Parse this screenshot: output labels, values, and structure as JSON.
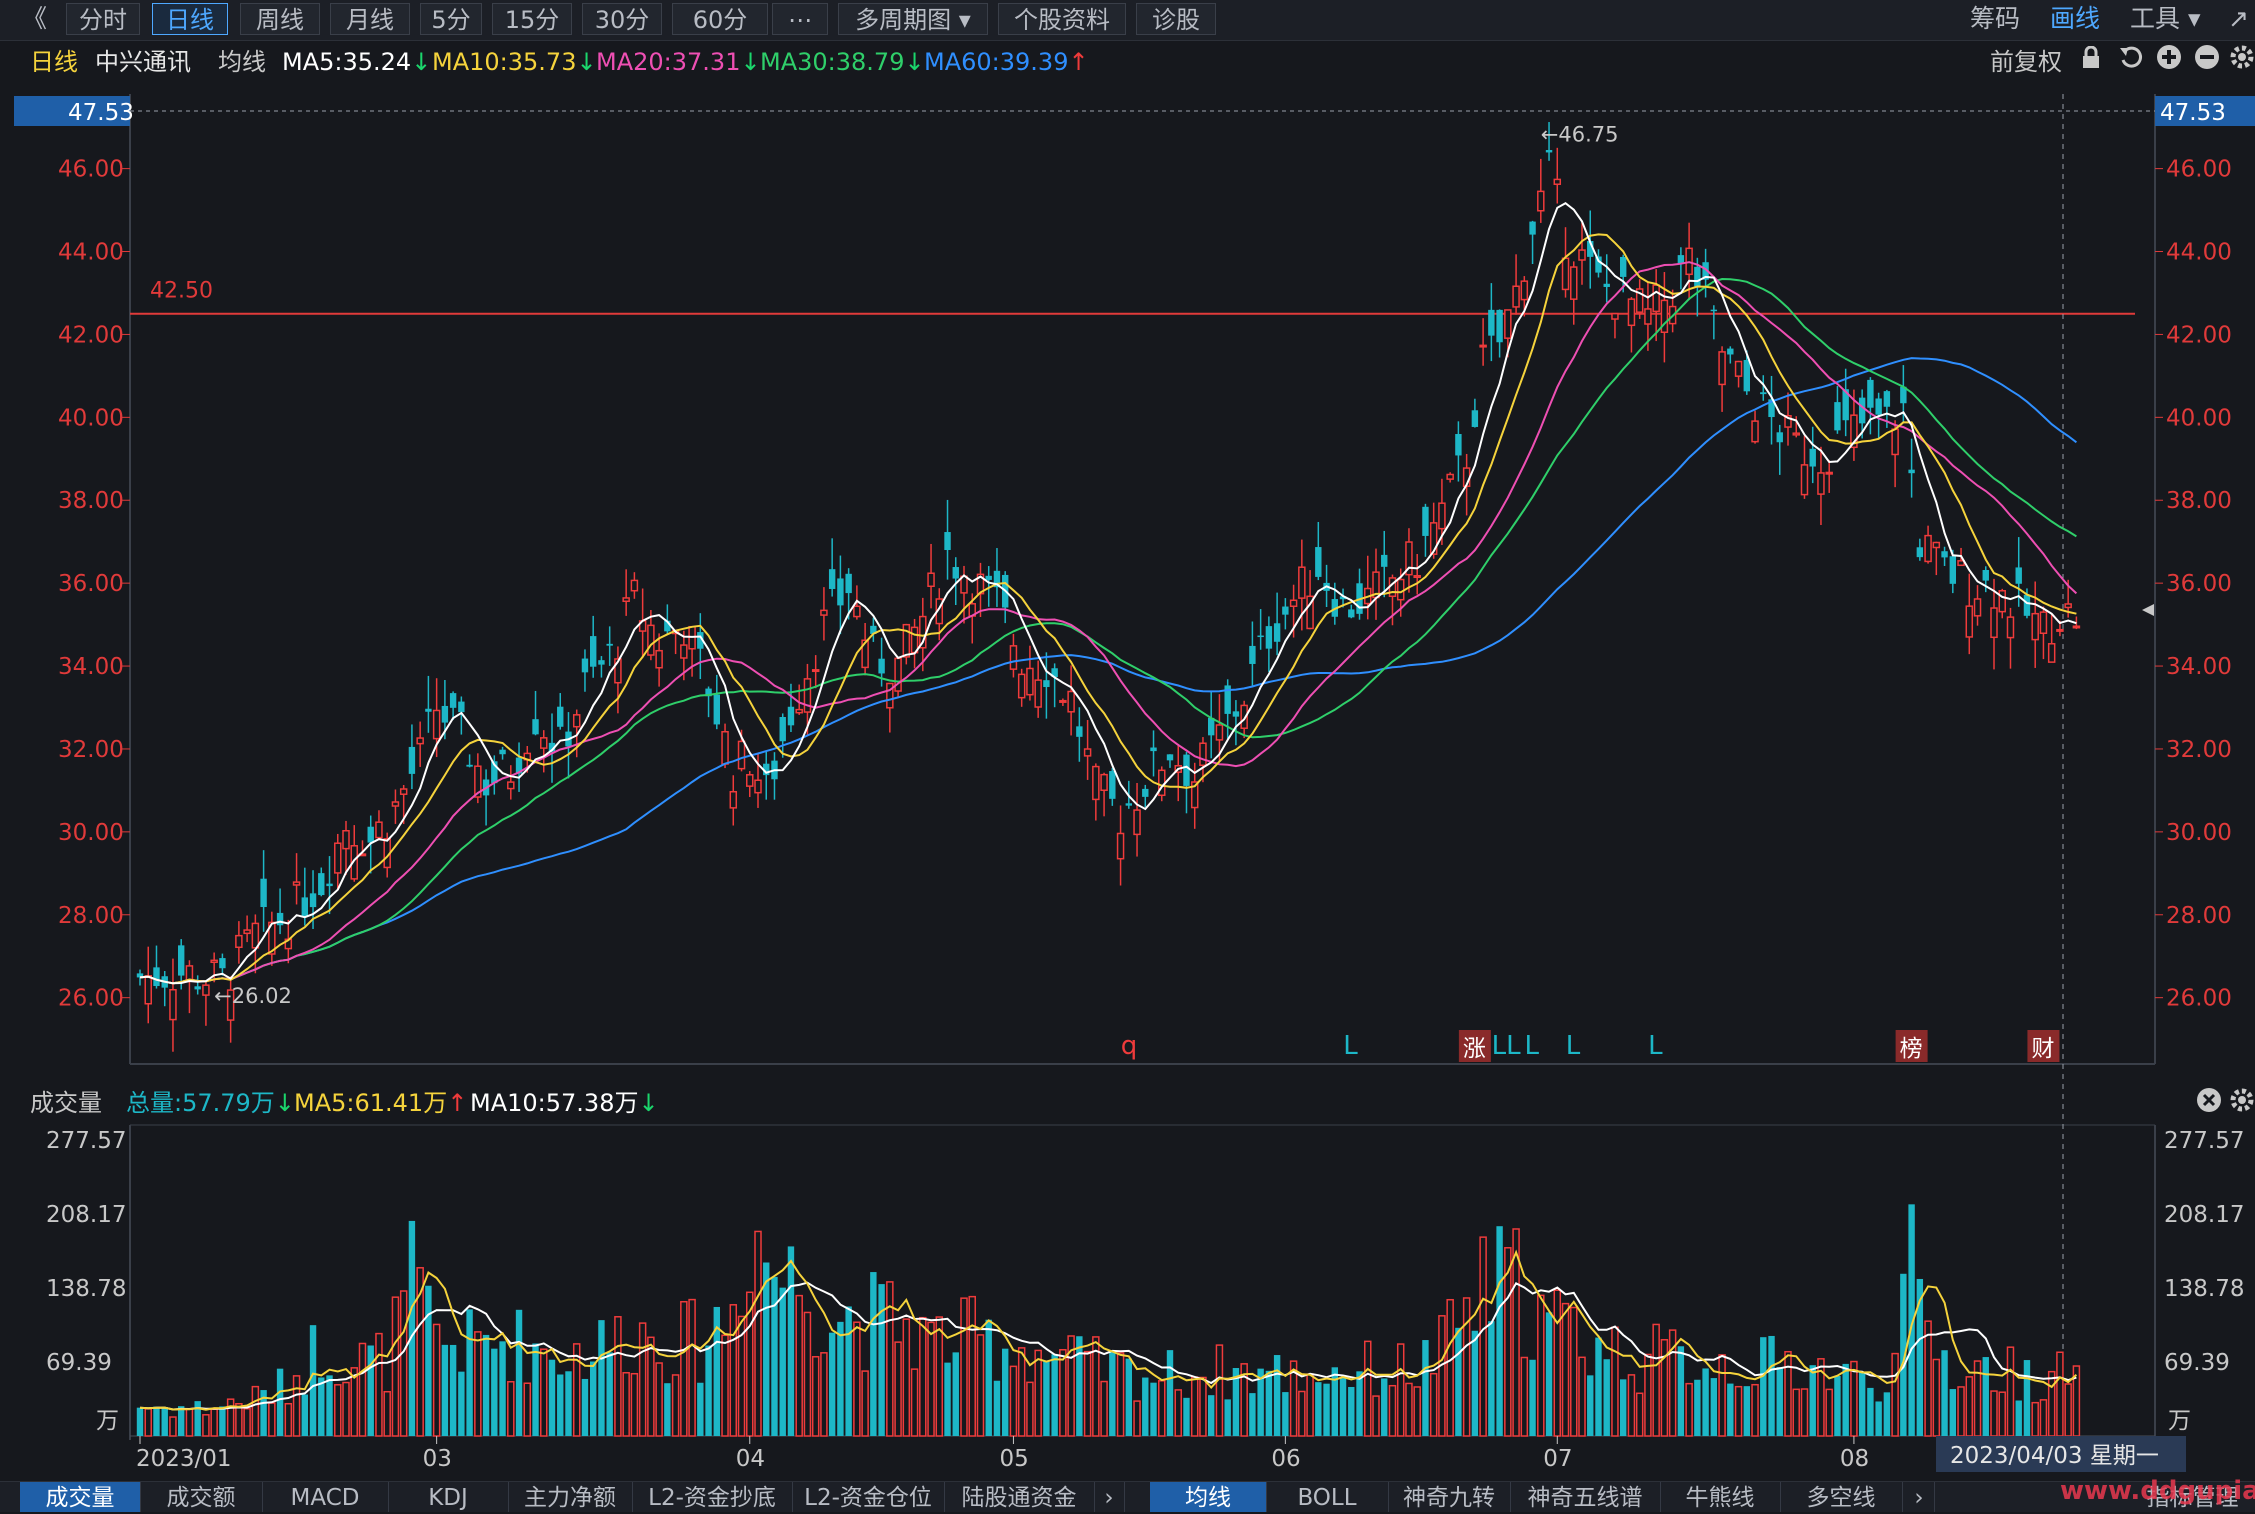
{
  "toolbar": {
    "back": "《",
    "tabs": [
      "分时",
      "日线",
      "周线",
      "月线",
      "5分",
      "15分",
      "30分",
      "60分",
      "⋯",
      "多周期图 ▾",
      "个股资料",
      "诊股"
    ],
    "active_tab": 1,
    "right": {
      "chip": "筹码",
      "draw": "画线",
      "tools": "工具 ▾",
      "more": "↗"
    }
  },
  "ma_header": {
    "period": "日线",
    "stock": "中兴通讯",
    "label": "均线",
    "ma5": "MA5:35.24",
    "ma10": "MA10:35.73",
    "ma20": "MA20:37.31",
    "ma30": "MA30:38.79",
    "ma60": "MA60:39.39",
    "adjust": "前复权",
    "colors": {
      "ma5": "#ffffff",
      "ma10": "#f5d33c",
      "ma20": "#ee4fb3",
      "ma30": "#2fcf6a",
      "ma60": "#2f8fff",
      "up": "#ef3b3b",
      "down": "#1db7c7"
    }
  },
  "vol_header": {
    "label": "成交量",
    "total": "总量:57.79万",
    "ma5": "MA5:61.41万",
    "ma10": "MA10:57.38万"
  },
  "chart_data": {
    "type": "candlestick",
    "price_axis_labels": [
      "46.00",
      "44.00",
      "42.00",
      "40.00",
      "38.00",
      "36.00",
      "34.00",
      "32.00",
      "30.00",
      "28.00",
      "26.00"
    ],
    "price_top": "47.53",
    "ylim": [
      24.4,
      47.8
    ],
    "hline": {
      "value": 42.5,
      "label": "42.50"
    },
    "high_label": "46.75",
    "low_label": "26.02",
    "vol_axis_labels": [
      "277.57",
      "208.17",
      "138.78",
      "69.39"
    ],
    "vol_unit": "万",
    "vol_ylim": [
      0,
      277.57
    ],
    "x_labels": [
      {
        "text": "2023/01",
        "index": 0
      },
      {
        "text": "03",
        "index": 36
      },
      {
        "text": "04",
        "index": 74
      },
      {
        "text": "05",
        "index": 106
      },
      {
        "text": "06",
        "index": 139
      },
      {
        "text": "07",
        "index": 172
      },
      {
        "text": "08",
        "index": 208
      }
    ],
    "crosshair_date": "2023/04/03 星期一",
    "markers": [
      {
        "text": "q",
        "index": 120,
        "style": "red"
      },
      {
        "text": "L",
        "index": 147,
        "style": "cyan"
      },
      {
        "text": "涨",
        "index": 162,
        "style": "box"
      },
      {
        "text": "LL",
        "index": 165,
        "style": "cyan"
      },
      {
        "text": "L",
        "index": 169,
        "style": "cyan"
      },
      {
        "text": "L",
        "index": 174,
        "style": "cyan"
      },
      {
        "text": "L",
        "index": 184,
        "style": "cyan"
      },
      {
        "text": "榜",
        "index": 215,
        "style": "box"
      },
      {
        "text": "财",
        "index": 231,
        "style": "box"
      }
    ],
    "anchors": [
      [
        0,
        26.5
      ],
      [
        5,
        26.6
      ],
      [
        10,
        26.4
      ],
      [
        14,
        27.5
      ],
      [
        18,
        28.0
      ],
      [
        22,
        28.8
      ],
      [
        25,
        30.2
      ],
      [
        28,
        29.8
      ],
      [
        31,
        30.6
      ],
      [
        34,
        31.8
      ],
      [
        36,
        33.0
      ],
      [
        39,
        32.3
      ],
      [
        42,
        31.2
      ],
      [
        45,
        31.5
      ],
      [
        48,
        32.8
      ],
      [
        51,
        32.0
      ],
      [
        54,
        33.5
      ],
      [
        57,
        34.2
      ],
      [
        60,
        35.6
      ],
      [
        63,
        34.6
      ],
      [
        66,
        35.0
      ],
      [
        69,
        33.5
      ],
      [
        72,
        31.5
      ],
      [
        74,
        31.8
      ],
      [
        76,
        30.9
      ],
      [
        79,
        32.9
      ],
      [
        83,
        35.0
      ],
      [
        86,
        35.9
      ],
      [
        89,
        34.2
      ],
      [
        92,
        34.0
      ],
      [
        95,
        35.2
      ],
      [
        98,
        36.7
      ],
      [
        101,
        36.1
      ],
      [
        104,
        35.5
      ],
      [
        107,
        34.2
      ],
      [
        110,
        34.0
      ],
      [
        113,
        33.2
      ],
      [
        116,
        31.0
      ],
      [
        119,
        30.4
      ],
      [
        122,
        31.2
      ],
      [
        125,
        32.0
      ],
      [
        128,
        31.3
      ],
      [
        131,
        32.3
      ],
      [
        134,
        33.3
      ],
      [
        137,
        34.8
      ],
      [
        140,
        35.6
      ],
      [
        143,
        36.4
      ],
      [
        146,
        35.4
      ],
      [
        149,
        35.6
      ],
      [
        152,
        36.1
      ],
      [
        155,
        36.6
      ],
      [
        158,
        37.7
      ],
      [
        161,
        39.1
      ],
      [
        163,
        41.3
      ],
      [
        165,
        41.8
      ],
      [
        167,
        43.0
      ],
      [
        169,
        44.6
      ],
      [
        171,
        45.9
      ],
      [
        173,
        44.4
      ],
      [
        175,
        43.8
      ],
      [
        177,
        43.2
      ],
      [
        180,
        42.9
      ],
      [
        183,
        42.4
      ],
      [
        186,
        43.1
      ],
      [
        188,
        43.8
      ],
      [
        190,
        42.8
      ],
      [
        192,
        41.6
      ],
      [
        195,
        40.6
      ],
      [
        198,
        39.9
      ],
      [
        201,
        39.3
      ],
      [
        204,
        39.1
      ],
      [
        207,
        39.6
      ],
      [
        210,
        39.9
      ],
      [
        212,
        39.9
      ],
      [
        214,
        40.2
      ],
      [
        216,
        37.0
      ],
      [
        219,
        36.3
      ],
      [
        222,
        36.0
      ],
      [
        225,
        35.9
      ],
      [
        228,
        35.4
      ],
      [
        231,
        34.9
      ],
      [
        233,
        35.3
      ],
      [
        235,
        35.2
      ]
    ],
    "vol_anchors": [
      [
        0,
        28
      ],
      [
        8,
        26
      ],
      [
        14,
        35
      ],
      [
        18,
        48
      ],
      [
        22,
        88
      ],
      [
        26,
        70
      ],
      [
        30,
        72
      ],
      [
        33,
        142
      ],
      [
        36,
        92
      ],
      [
        40,
        84
      ],
      [
        44,
        90
      ],
      [
        48,
        84
      ],
      [
        52,
        76
      ],
      [
        56,
        84
      ],
      [
        60,
        98
      ],
      [
        64,
        90
      ],
      [
        68,
        88
      ],
      [
        72,
        120
      ],
      [
        74,
        210
      ],
      [
        76,
        168
      ],
      [
        78,
        150
      ],
      [
        80,
        145
      ],
      [
        84,
        118
      ],
      [
        88,
        110
      ],
      [
        92,
        108
      ],
      [
        96,
        90
      ],
      [
        100,
        92
      ],
      [
        104,
        88
      ],
      [
        108,
        82
      ],
      [
        112,
        72
      ],
      [
        116,
        65
      ],
      [
        120,
        60
      ],
      [
        124,
        57
      ],
      [
        130,
        60
      ],
      [
        135,
        60
      ],
      [
        140,
        58
      ],
      [
        145,
        62
      ],
      [
        150,
        62
      ],
      [
        155,
        64
      ],
      [
        158,
        80
      ],
      [
        161,
        118
      ],
      [
        164,
        142
      ],
      [
        167,
        142
      ],
      [
        170,
        110
      ],
      [
        174,
        98
      ],
      [
        178,
        82
      ],
      [
        182,
        72
      ],
      [
        186,
        74
      ],
      [
        190,
        72
      ],
      [
        194,
        68
      ],
      [
        198,
        66
      ],
      [
        202,
        68
      ],
      [
        206,
        58
      ],
      [
        210,
        52
      ],
      [
        213,
        68
      ],
      [
        215,
        152
      ],
      [
        217,
        98
      ],
      [
        220,
        64
      ],
      [
        224,
        62
      ],
      [
        228,
        58
      ],
      [
        231,
        56
      ],
      [
        235,
        57
      ]
    ]
  },
  "bottom_tabs_left": [
    "成交量",
    "成交额",
    "MACD",
    "KDJ",
    "主力净额",
    "L2-资金抄底",
    "L2-资金仓位",
    "陆股通资金"
  ],
  "bottom_tabs_right": [
    "均线",
    "BOLL",
    "神奇九转",
    "神奇五线谱",
    "牛熊线",
    "多空线"
  ],
  "bottom_right": "指标管理",
  "watermark": "www.ddgupiao.com"
}
